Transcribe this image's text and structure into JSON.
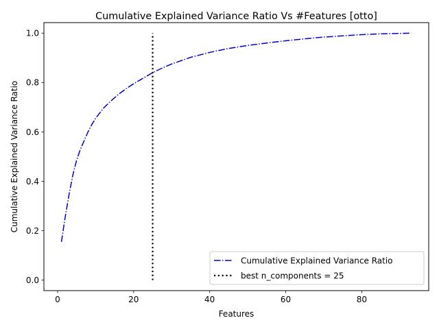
{
  "chart_data": {
    "type": "line",
    "title": "Cumulative Explained Variance Ratio Vs #Features [otto]",
    "xlabel": "Features",
    "ylabel": "Cumulative Explained Variance Ratio",
    "xlim": [
      -3.6,
      97.6
    ],
    "ylim": [
      -0.0425,
      1.0425
    ],
    "xticks": [
      0,
      20,
      40,
      60,
      80
    ],
    "xtick_labels": [
      "0",
      "20",
      "40",
      "60",
      "80"
    ],
    "yticks": [
      0.0,
      0.2,
      0.4,
      0.6,
      0.8,
      1.0
    ],
    "ytick_labels": [
      "0.0",
      "0.2",
      "0.4",
      "0.6",
      "0.8",
      "1.0"
    ],
    "grid": false,
    "legend_position": "lower-right",
    "colors": {
      "curve": "#0000cc",
      "vline": "#000000",
      "axes": "#000000"
    },
    "series": [
      {
        "name": "Cumulative Explained Variance Ratio",
        "style": "dashdot",
        "x": [
          1,
          2,
          3,
          4,
          5,
          6,
          7,
          8,
          9,
          10,
          12,
          14,
          16,
          18,
          20,
          22,
          25,
          28,
          30,
          35,
          40,
          45,
          50,
          55,
          60,
          65,
          70,
          75,
          80,
          85,
          90,
          93
        ],
        "y": [
          0.155,
          0.255,
          0.345,
          0.425,
          0.485,
          0.53,
          0.565,
          0.6,
          0.63,
          0.655,
          0.695,
          0.725,
          0.752,
          0.775,
          0.795,
          0.813,
          0.84,
          0.862,
          0.875,
          0.902,
          0.922,
          0.938,
          0.95,
          0.96,
          0.969,
          0.977,
          0.984,
          0.989,
          0.994,
          0.997,
          0.999,
          1.0
        ]
      },
      {
        "name": "best n_components = 25",
        "style": "dotted",
        "x": [
          25,
          25
        ],
        "y": [
          0.0,
          1.0
        ]
      }
    ]
  }
}
